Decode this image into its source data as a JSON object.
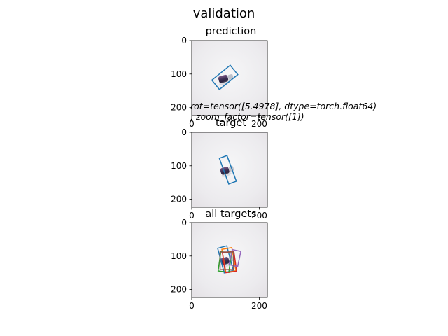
{
  "figure": {
    "title": "validation"
  },
  "chart_data": [
    {
      "type": "image",
      "title": "prediction",
      "xlim": [
        0,
        224
      ],
      "ylim": [
        224,
        0
      ],
      "xticks": [
        0,
        200
      ],
      "yticks": [
        0,
        100,
        200
      ],
      "boxes": [
        {
          "cx": 98,
          "cy": 110,
          "w": 70,
          "h": 36,
          "angle": -39,
          "color": "#1f77b4"
        }
      ],
      "object": {
        "x1": 82,
        "y1": 118,
        "x2": 118,
        "y2": 108
      },
      "annotation": "rot=tensor([5.4978], dtype=torch.float64)\n, zoom_factor=tensor([1])"
    },
    {
      "type": "image",
      "title": "target",
      "xlim": [
        0,
        224
      ],
      "ylim": [
        224,
        0
      ],
      "xticks": [
        0,
        200
      ],
      "yticks": [
        0,
        100,
        200
      ],
      "boxes": [
        {
          "cx": 107,
          "cy": 112,
          "w": 24,
          "h": 82,
          "angle": -20,
          "color": "#1f77b4"
        }
      ],
      "object": {
        "x1": 88,
        "y1": 118,
        "x2": 120,
        "y2": 108
      }
    },
    {
      "type": "image",
      "title": "all targets",
      "xlim": [
        0,
        224
      ],
      "ylim": [
        224,
        0
      ],
      "xticks": [
        0,
        200
      ],
      "yticks": [
        0,
        100,
        200
      ],
      "boxes": [
        {
          "cx": 100,
          "cy": 110,
          "w": 28,
          "h": 76,
          "angle": -15,
          "color": "#1f77b4"
        },
        {
          "cx": 110,
          "cy": 112,
          "w": 30,
          "h": 70,
          "angle": -10,
          "color": "#ff7f0e"
        },
        {
          "cx": 98,
          "cy": 118,
          "w": 32,
          "h": 58,
          "angle": 8,
          "color": "#2ca02c"
        },
        {
          "cx": 112,
          "cy": 118,
          "w": 34,
          "h": 60,
          "angle": -8,
          "color": "#d62728"
        },
        {
          "cx": 128,
          "cy": 106,
          "w": 26,
          "h": 46,
          "angle": 12,
          "color": "#9467bd"
        },
        {
          "cx": 104,
          "cy": 114,
          "w": 40,
          "h": 52,
          "angle": 0,
          "color": "#8c564b"
        }
      ],
      "object": {
        "x1": 88,
        "y1": 118,
        "x2": 120,
        "y2": 108
      }
    }
  ]
}
